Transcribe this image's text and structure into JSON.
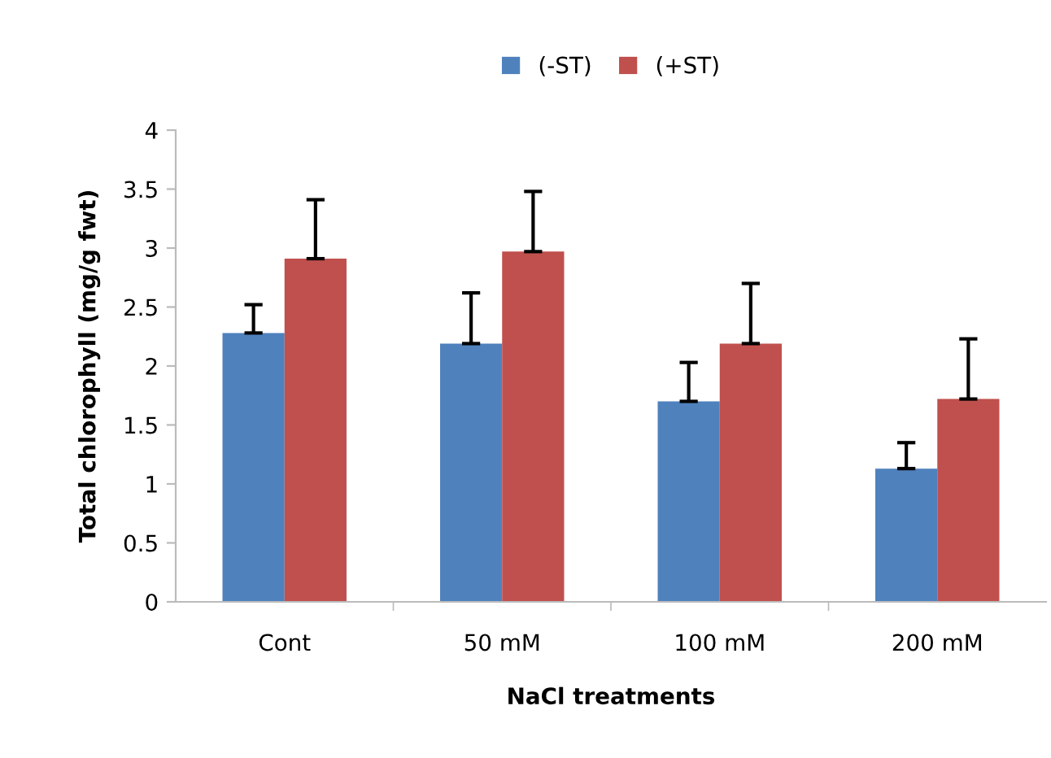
{
  "chart_data": {
    "type": "bar",
    "xlabel": "NaCl treatments",
    "ylabel": "Total chlorophyll (mg/g fwt)",
    "categories": [
      "Cont",
      "50 mM",
      "100 mM",
      "200 mM"
    ],
    "series": [
      {
        "name": "(-ST)",
        "color": "#4f81bd",
        "values": [
          2.28,
          2.19,
          1.7,
          1.13
        ],
        "errors": [
          [
            2.28,
            2.52
          ],
          [
            2.19,
            2.62
          ],
          [
            1.7,
            2.03
          ],
          [
            1.13,
            1.35
          ]
        ]
      },
      {
        "name": "(+ST)",
        "color": "#c0504d",
        "values": [
          2.91,
          2.97,
          2.19,
          1.72
        ],
        "errors": [
          [
            2.91,
            3.41
          ],
          [
            2.97,
            3.48
          ],
          [
            2.19,
            2.7
          ],
          [
            1.72,
            2.23
          ]
        ]
      }
    ],
    "ylim": [
      0,
      4
    ],
    "yticks": [
      0,
      0.5,
      1,
      1.5,
      2,
      2.5,
      3,
      3.5,
      4
    ],
    "grid": false,
    "legend": "top"
  }
}
